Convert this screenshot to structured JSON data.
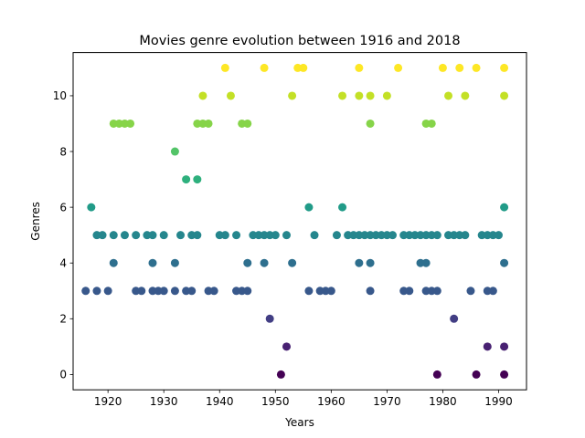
{
  "chart_data": {
    "type": "scatter",
    "title": "Movies genre evolution between 1916 and 2018",
    "xlabel": "Years",
    "ylabel": "Genres",
    "xlim": [
      1913.75,
      1995.0
    ],
    "ylim": [
      -0.55,
      11.55
    ],
    "xticks": [
      1920,
      1930,
      1940,
      1950,
      1960,
      1970,
      1980,
      1990
    ],
    "yticks": [
      0,
      2,
      4,
      6,
      8,
      10
    ],
    "grid": false,
    "colormap": "viridis",
    "color_range": [
      0,
      11
    ],
    "points": [
      [
        1916,
        3
      ],
      [
        1918,
        3
      ],
      [
        1920,
        3
      ],
      [
        1925,
        3
      ],
      [
        1926,
        3
      ],
      [
        1928,
        3
      ],
      [
        1929,
        3
      ],
      [
        1930,
        3
      ],
      [
        1932,
        3
      ],
      [
        1934,
        3
      ],
      [
        1935,
        3
      ],
      [
        1938,
        3
      ],
      [
        1939,
        3
      ],
      [
        1943,
        3
      ],
      [
        1944,
        3
      ],
      [
        1945,
        3
      ],
      [
        1956,
        3
      ],
      [
        1958,
        3
      ],
      [
        1959,
        3
      ],
      [
        1960,
        3
      ],
      [
        1967,
        3
      ],
      [
        1973,
        3
      ],
      [
        1974,
        3
      ],
      [
        1977,
        3
      ],
      [
        1978,
        3
      ],
      [
        1979,
        3
      ],
      [
        1985,
        3
      ],
      [
        1988,
        3
      ],
      [
        1989,
        3
      ],
      [
        1921,
        4
      ],
      [
        1928,
        4
      ],
      [
        1932,
        4
      ],
      [
        1945,
        4
      ],
      [
        1948,
        4
      ],
      [
        1953,
        4
      ],
      [
        1965,
        4
      ],
      [
        1967,
        4
      ],
      [
        1976,
        4
      ],
      [
        1977,
        4
      ],
      [
        1991,
        4
      ],
      [
        1917,
        6
      ],
      [
        1956,
        6
      ],
      [
        1962,
        6
      ],
      [
        1991,
        6
      ],
      [
        1918,
        5
      ],
      [
        1919,
        5
      ],
      [
        1921,
        5
      ],
      [
        1923,
        5
      ],
      [
        1925,
        5
      ],
      [
        1927,
        5
      ],
      [
        1928,
        5
      ],
      [
        1930,
        5
      ],
      [
        1933,
        5
      ],
      [
        1935,
        5
      ],
      [
        1936,
        5
      ],
      [
        1940,
        5
      ],
      [
        1941,
        5
      ],
      [
        1943,
        5
      ],
      [
        1946,
        5
      ],
      [
        1947,
        5
      ],
      [
        1948,
        5
      ],
      [
        1949,
        5
      ],
      [
        1950,
        5
      ],
      [
        1952,
        5
      ],
      [
        1957,
        5
      ],
      [
        1961,
        5
      ],
      [
        1963,
        5
      ],
      [
        1964,
        5
      ],
      [
        1965,
        5
      ],
      [
        1966,
        5
      ],
      [
        1967,
        5
      ],
      [
        1968,
        5
      ],
      [
        1969,
        5
      ],
      [
        1970,
        5
      ],
      [
        1971,
        5
      ],
      [
        1973,
        5
      ],
      [
        1974,
        5
      ],
      [
        1975,
        5
      ],
      [
        1976,
        5
      ],
      [
        1977,
        5
      ],
      [
        1978,
        5
      ],
      [
        1979,
        5
      ],
      [
        1981,
        5
      ],
      [
        1982,
        5
      ],
      [
        1983,
        5
      ],
      [
        1984,
        5
      ],
      [
        1987,
        5
      ],
      [
        1988,
        5
      ],
      [
        1989,
        5
      ],
      [
        1990,
        5
      ],
      [
        1932,
        8
      ],
      [
        1934,
        7
      ],
      [
        1936,
        7
      ],
      [
        1921,
        9
      ],
      [
        1922,
        9
      ],
      [
        1923,
        9
      ],
      [
        1924,
        9
      ],
      [
        1936,
        9
      ],
      [
        1937,
        9
      ],
      [
        1938,
        9
      ],
      [
        1944,
        9
      ],
      [
        1945,
        9
      ],
      [
        1967,
        9
      ],
      [
        1977,
        9
      ],
      [
        1978,
        9
      ],
      [
        1937,
        10
      ],
      [
        1942,
        10
      ],
      [
        1953,
        10
      ],
      [
        1962,
        10
      ],
      [
        1965,
        10
      ],
      [
        1967,
        10
      ],
      [
        1970,
        10
      ],
      [
        1981,
        10
      ],
      [
        1984,
        10
      ],
      [
        1991,
        10
      ],
      [
        1941,
        11
      ],
      [
        1948,
        11
      ],
      [
        1954,
        11
      ],
      [
        1955,
        11
      ],
      [
        1965,
        11
      ],
      [
        1972,
        11
      ],
      [
        1980,
        11
      ],
      [
        1983,
        11
      ],
      [
        1986,
        11
      ],
      [
        1991,
        11
      ],
      [
        1949,
        2
      ],
      [
        1982,
        2
      ],
      [
        1952,
        1
      ],
      [
        1988,
        1
      ],
      [
        1991,
        1
      ],
      [
        1951,
        0
      ],
      [
        1979,
        0
      ],
      [
        1986,
        0
      ],
      [
        1991,
        0
      ]
    ]
  }
}
